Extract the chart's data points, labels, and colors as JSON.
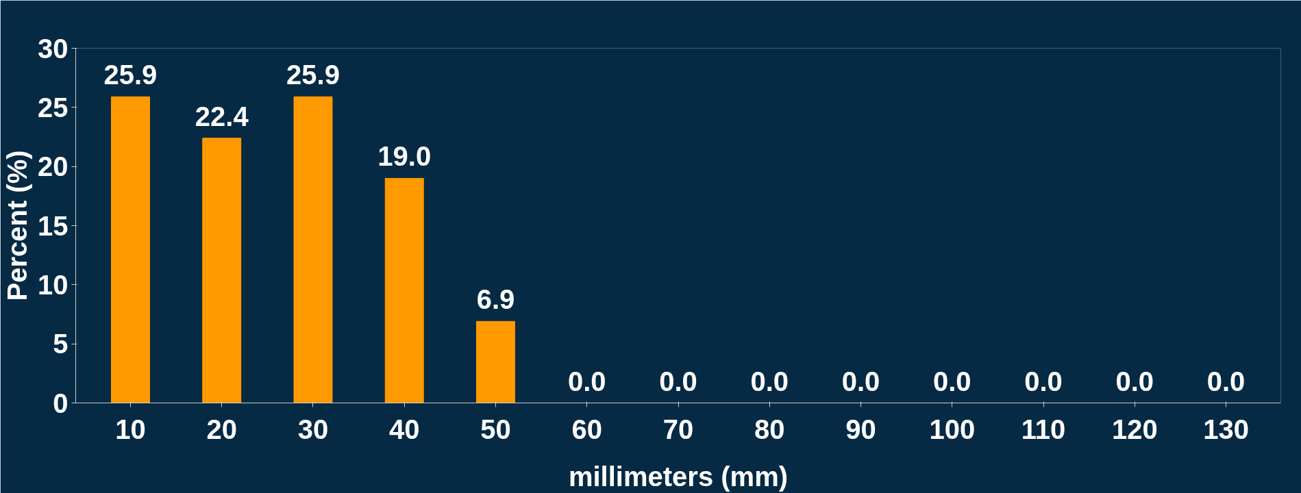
{
  "chart_data": {
    "type": "bar",
    "xlabel": "millimeters (mm)",
    "ylabel": "Percent (%)",
    "categories": [
      "10",
      "20",
      "30",
      "40",
      "50",
      "60",
      "70",
      "80",
      "90",
      "100",
      "110",
      "120",
      "130"
    ],
    "values": [
      25.9,
      22.4,
      25.9,
      19.0,
      6.9,
      0.0,
      0.0,
      0.0,
      0.0,
      0.0,
      0.0,
      0.0,
      0.0
    ],
    "value_labels": [
      "25.9",
      "22.4",
      "25.9",
      "19.0",
      "6.9",
      "0.0",
      "0.0",
      "0.0",
      "0.0",
      "0.0",
      "0.0",
      "0.0",
      "0.0"
    ],
    "color": "#ff9900",
    "ylim": [
      0,
      30
    ],
    "yticks": [
      0,
      5,
      10,
      15,
      20,
      25,
      30
    ],
    "grid": false
  }
}
